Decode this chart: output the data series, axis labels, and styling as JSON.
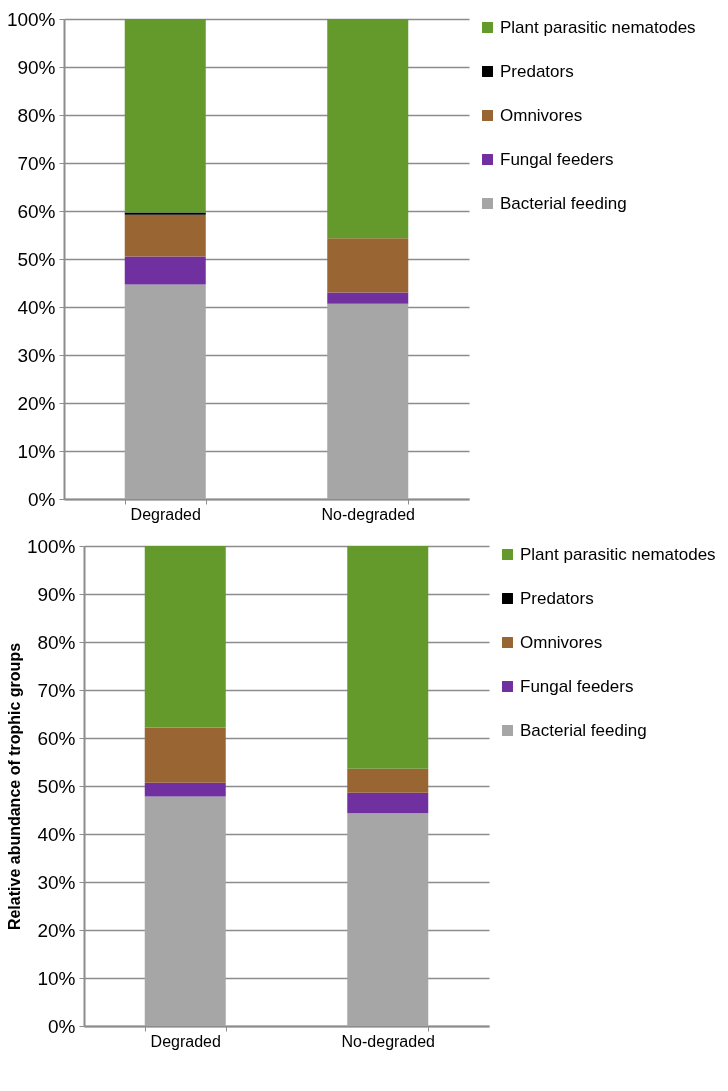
{
  "chart_data": [
    {
      "type": "bar",
      "stacked": true,
      "categories": [
        "Degraded",
        "No-degraded"
      ],
      "ylim": [
        0,
        100
      ],
      "yticks": [
        {
          "value": 0,
          "label": "0%"
        },
        {
          "value": 10,
          "label": "10%"
        },
        {
          "value": 20,
          "label": "20%"
        },
        {
          "value": 30,
          "label": "30%"
        },
        {
          "value": 40,
          "label": "40%"
        },
        {
          "value": 50,
          "label": "50%"
        },
        {
          "value": 60,
          "label": "60%"
        },
        {
          "value": 70,
          "label": "70%"
        },
        {
          "value": 80,
          "label": "80%"
        },
        {
          "value": 90,
          "label": "90%"
        },
        {
          "value": 100,
          "label": "100%"
        }
      ],
      "grid": "y",
      "legend": "right",
      "series": [
        {
          "name": "Bacterial feeding",
          "color": "#a6a6a6",
          "values": [
            44.7,
            40.7
          ]
        },
        {
          "name": "Fungal feeders",
          "color": "#7030a0",
          "values": [
            5.8,
            2.3
          ]
        },
        {
          "name": "Omnivores",
          "color": "#996633",
          "values": [
            8.7,
            11.3
          ]
        },
        {
          "name": "Predators",
          "color": "#000000",
          "values": [
            0.5,
            0
          ]
        },
        {
          "name": "Plant parasitic nematodes",
          "color": "#64992c",
          "values": [
            40.3,
            45.7
          ]
        }
      ]
    },
    {
      "type": "bar",
      "stacked": true,
      "ylabel": "Relative abundance of trophic groups",
      "categories": [
        "Degraded",
        "No-degraded"
      ],
      "ylim": [
        0,
        100
      ],
      "yticks": [
        {
          "value": 0,
          "label": "0%"
        },
        {
          "value": 10,
          "label": "10%"
        },
        {
          "value": 20,
          "label": "20%"
        },
        {
          "value": 30,
          "label": "30%"
        },
        {
          "value": 40,
          "label": "40%"
        },
        {
          "value": 50,
          "label": "50%"
        },
        {
          "value": 60,
          "label": "60%"
        },
        {
          "value": 70,
          "label": "70%"
        },
        {
          "value": 80,
          "label": "80%"
        },
        {
          "value": 90,
          "label": "90%"
        },
        {
          "value": 100,
          "label": "100%"
        }
      ],
      "grid": "y",
      "legend": "right",
      "series": [
        {
          "name": "Bacterial feeding",
          "color": "#a6a6a6",
          "values": [
            47.8,
            44.3
          ]
        },
        {
          "name": "Fungal feeders",
          "color": "#7030a0",
          "values": [
            2.9,
            4.3
          ]
        },
        {
          "name": "Omnivores",
          "color": "#996633",
          "values": [
            11.5,
            5.0
          ]
        },
        {
          "name": "Predators",
          "color": "#000000",
          "values": [
            0,
            0
          ]
        },
        {
          "name": "Plant parasitic nematodes",
          "color": "#64992c",
          "values": [
            37.8,
            46.4
          ]
        }
      ]
    }
  ]
}
